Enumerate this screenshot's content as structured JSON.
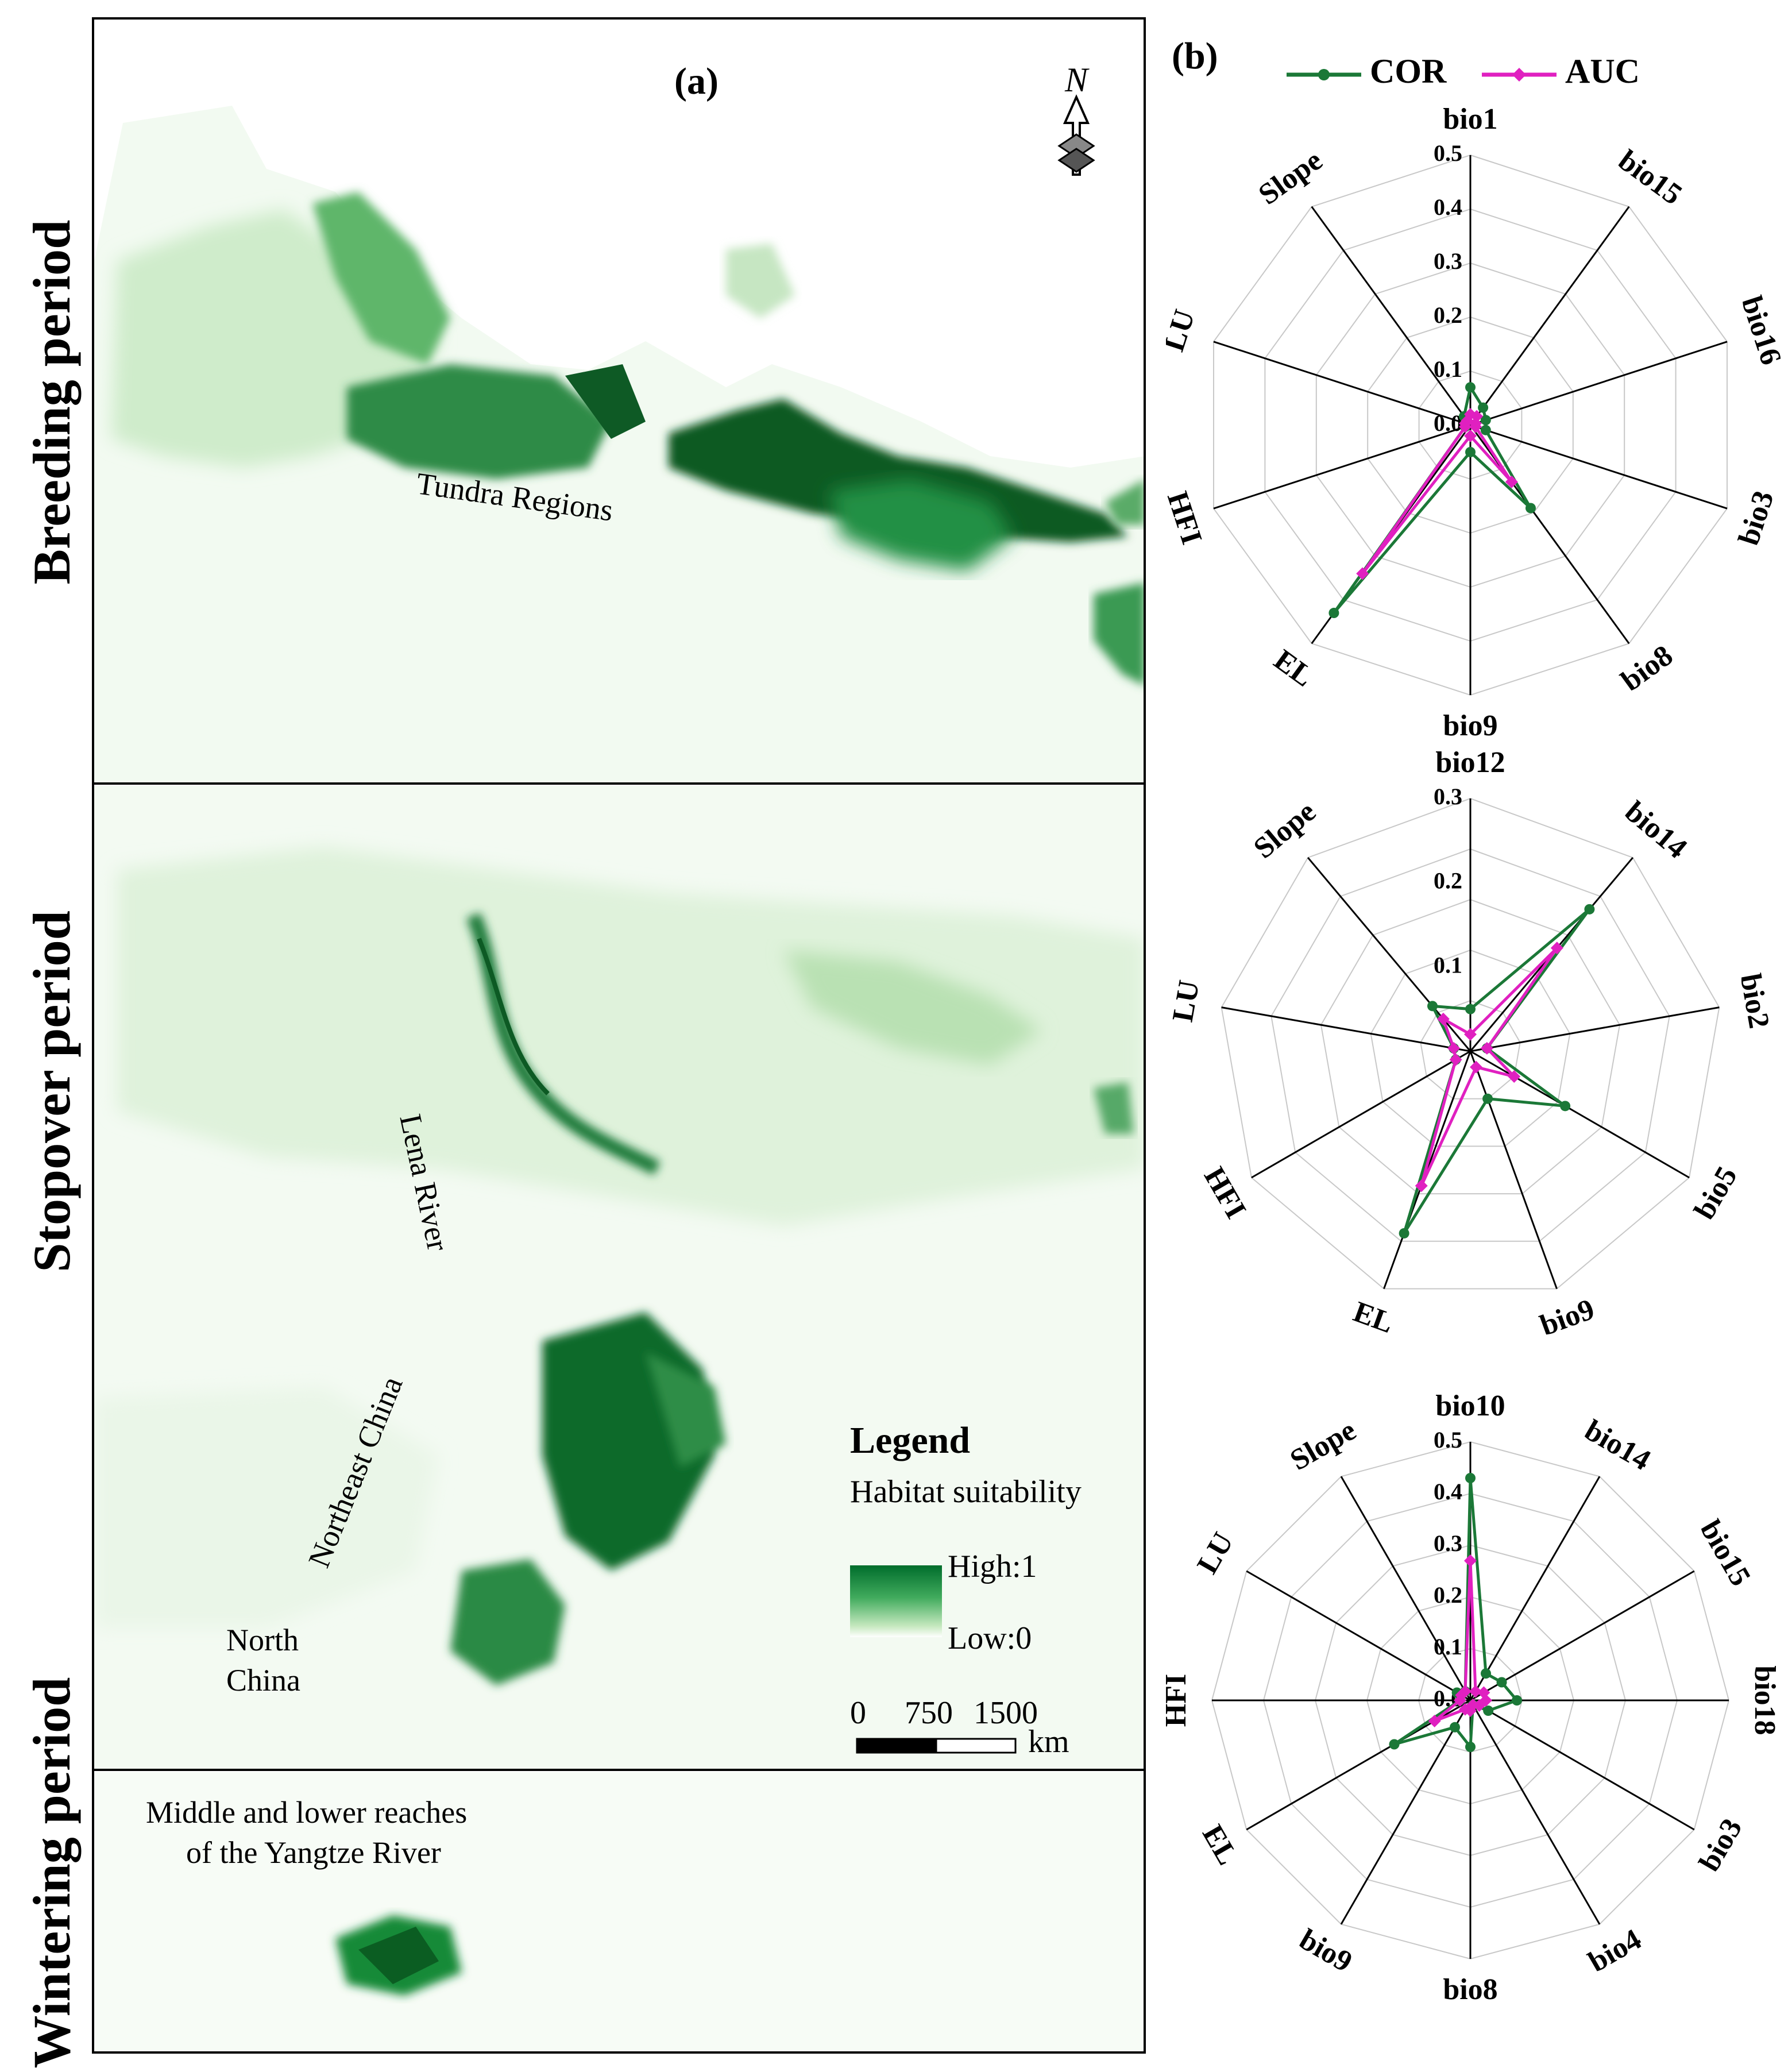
{
  "panel_a": {
    "label": "(a)",
    "periods": [
      "Breeding period",
      "Stopover period",
      "Wintering period"
    ],
    "annotations": {
      "tundra": "Tundra Regions",
      "lena": "Lena River",
      "northeast_china": "Northeast China",
      "north_china": [
        "North",
        "China"
      ],
      "yangtze": [
        "Middle and lower reaches",
        "of the Yangtze River"
      ]
    },
    "north_label": "N",
    "legend": {
      "title": "Legend",
      "subtitle": "Habitat suitability",
      "high": "High:1",
      "low": "Low:0",
      "scale_ticks": [
        "0",
        "750",
        "1500"
      ],
      "scale_unit": "km",
      "high_color": "#006d2c",
      "low_color": "#ffffff"
    }
  },
  "panel_b": {
    "label": "(b)"
  },
  "chart_data": [
    {
      "type": "radar",
      "period": "Breeding period",
      "axes": [
        "bio1",
        "bio15",
        "bio16",
        "bio3",
        "bio8",
        "bio9",
        "EL",
        "HFI",
        "LU",
        "Slope"
      ],
      "tick_labels": [
        "0.0",
        "0.1",
        "0.2",
        "0.3",
        "0.4",
        "0.5"
      ],
      "rmax": 0.5,
      "series": [
        {
          "name": "COR",
          "color": "#1b7837",
          "values": [
            0.07,
            0.04,
            0.03,
            0.03,
            0.19,
            0.05,
            0.43,
            0.01,
            0.01,
            0.02
          ]
        },
        {
          "name": "AUC",
          "color": "#e020c0",
          "values": [
            0.02,
            0.02,
            0.01,
            0.01,
            0.13,
            0.02,
            0.34,
            0.01,
            0.01,
            0.01
          ]
        }
      ]
    },
    {
      "type": "radar",
      "period": "Stopover period",
      "axes": [
        "bio12",
        "bio14",
        "bio2",
        "bio5",
        "bio9",
        "EL",
        "HFI",
        "LU",
        "Slope"
      ],
      "tick_labels": [
        "0.1",
        "0.2",
        "0.3"
      ],
      "rmax": 0.3,
      "series": [
        {
          "name": "COR",
          "color": "#1b7837",
          "values": [
            0.05,
            0.22,
            0.02,
            0.13,
            0.06,
            0.23,
            0.02,
            0.02,
            0.07
          ]
        },
        {
          "name": "AUC",
          "color": "#e020c0",
          "values": [
            0.02,
            0.16,
            0.02,
            0.06,
            0.02,
            0.17,
            0.02,
            0.02,
            0.05
          ]
        }
      ]
    },
    {
      "type": "radar",
      "period": "Wintering period",
      "axes": [
        "bio10",
        "bio14",
        "bio15",
        "bio18",
        "bio3",
        "bio4",
        "bio8",
        "bio9",
        "EL",
        "HFI",
        "LU",
        "Slope"
      ],
      "tick_labels": [
        "0.0",
        "0.1",
        "0.2",
        "0.3",
        "0.4",
        "0.5"
      ],
      "rmax": 0.5,
      "series": [
        {
          "name": "COR",
          "color": "#1b7837",
          "values": [
            0.43,
            0.06,
            0.07,
            0.09,
            0.04,
            0.01,
            0.09,
            0.06,
            0.17,
            0.02,
            0.03,
            0.02
          ]
        },
        {
          "name": "AUC",
          "color": "#e020c0",
          "values": [
            0.27,
            0.02,
            0.03,
            0.03,
            0.02,
            0.01,
            0.02,
            0.02,
            0.08,
            0.02,
            0.02,
            0.02
          ]
        }
      ]
    }
  ]
}
